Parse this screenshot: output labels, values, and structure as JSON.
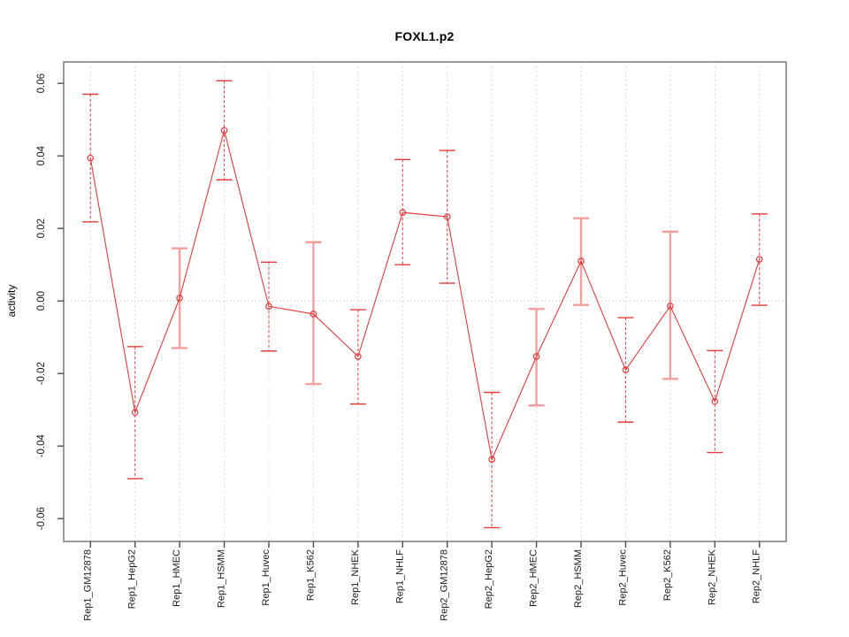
{
  "window": {
    "background": "#ffffff"
  },
  "chart_data": {
    "type": "line",
    "title": "FOXL1.p2",
    "xlabel": "",
    "ylabel": "activity",
    "legend": "none",
    "grid": {
      "vertical_dashed_per_category": true,
      "horizontal_zero_dotted": true
    },
    "ylim": [
      -0.0663,
      0.0659
    ],
    "yticks": [
      -0.06,
      -0.04,
      -0.02,
      0,
      0.02,
      0.04,
      0.06
    ],
    "ytick_labels": [
      "-0.06",
      "-0.04",
      "-0.02",
      "0.00",
      "0.02",
      "0.04",
      "0.06"
    ],
    "categories": [
      "Rep1_GM12878",
      "Rep1_HepG2",
      "Rep1_HMEC",
      "Rep1_HSMM",
      "Rep1_Huvec",
      "Rep1_K562",
      "Rep1_NHEK",
      "Rep1_NHLF",
      "Rep2_GM12878",
      "Rep2_HepG2",
      "Rep2_HMEC",
      "Rep2_HSMM",
      "Rep2_Huvec",
      "Rep2_K562",
      "Rep2_NHEK",
      "Rep2_NHLF"
    ],
    "series": [
      {
        "name": "activity",
        "values": [
          0.0394,
          -0.0307,
          0.0008,
          0.047,
          -0.0015,
          -0.0036,
          -0.0153,
          0.0244,
          0.0232,
          -0.0437,
          -0.0153,
          0.011,
          -0.019,
          -0.0014,
          -0.0277,
          0.0115
        ],
        "upper": [
          0.057,
          -0.0126,
          0.0145,
          0.0607,
          0.0107,
          0.0162,
          -0.0024,
          0.039,
          0.0415,
          -0.0252,
          -0.0022,
          0.0228,
          -0.0046,
          0.0191,
          -0.0137,
          0.024
        ],
        "lower": [
          0.0218,
          -0.049,
          -0.013,
          0.0334,
          -0.0138,
          -0.0229,
          -0.0284,
          0.01,
          0.0049,
          -0.0625,
          -0.0288,
          -0.0011,
          -0.0334,
          -0.0215,
          -0.0418,
          -0.0012
        ],
        "error_bar_styles": [
          "dashed",
          "dashed",
          "solid",
          "dashed",
          "dashed",
          "solid",
          "dashed",
          "dashed",
          "dashed",
          "dashed",
          "solid",
          "solid",
          "dashed",
          "solid",
          "dashed",
          "dashed"
        ]
      }
    ],
    "colors": {
      "line": "#e23b3b",
      "point": "#e23b3b",
      "error_bar_dashed": "#e23b3b",
      "error_bar_solid": "#f49e9e",
      "grid": "#d9d9d9",
      "zero_line": "#c8c8c8",
      "frame": "#808080",
      "tick": "#4d4d4d",
      "text": "#1a1a1a"
    }
  }
}
